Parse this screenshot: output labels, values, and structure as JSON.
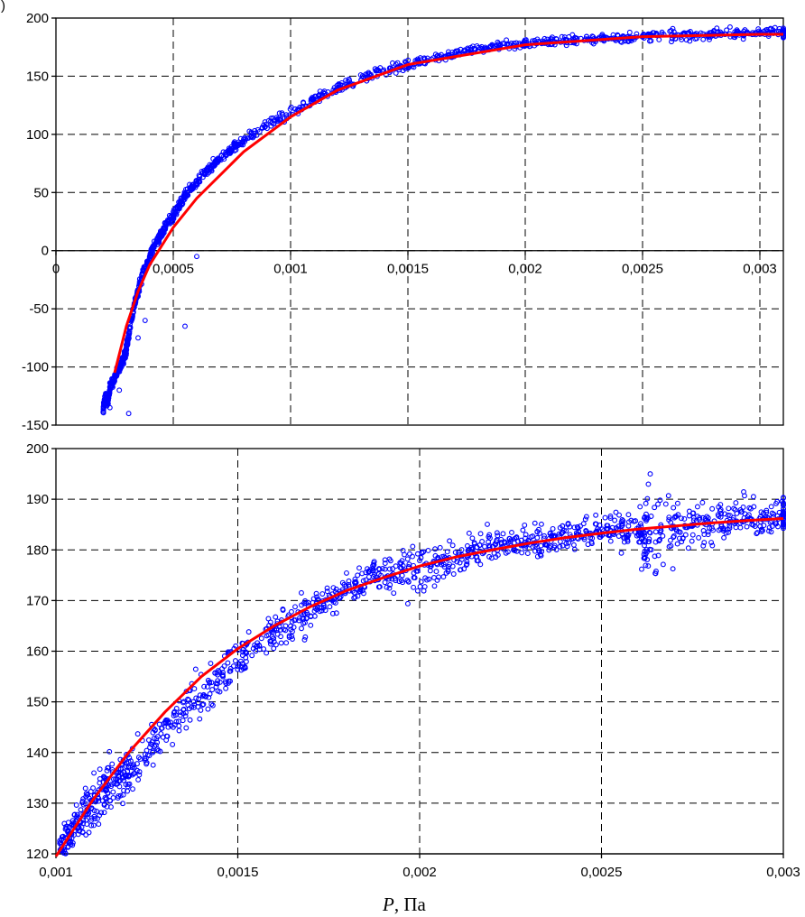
{
  "figure": {
    "label_fragment": ")",
    "xlabel_italic": "P",
    "xlabel_rest": ", Па"
  },
  "chart_data": [
    {
      "type": "scatter",
      "title": "",
      "xlim": [
        0,
        0.0031
      ],
      "ylim": [
        -150,
        200
      ],
      "x_ticks": [
        0,
        0.0005,
        0.001,
        0.0015,
        0.002,
        0.0025,
        0.003
      ],
      "x_tick_labels": [
        "0",
        "0,0005",
        "0,001",
        "0,0015",
        "0,002",
        "0,0025",
        "0,003"
      ],
      "y_ticks": [
        -150,
        -100,
        -50,
        0,
        50,
        100,
        150,
        200
      ],
      "y_tick_labels": [
        "-150",
        "-100",
        "-50",
        "0",
        "50",
        "100",
        "150",
        "200"
      ],
      "grid": true,
      "x_axis_at_y": 0,
      "series": [
        {
          "kind": "scatter",
          "color": "#0000ff",
          "x": [
            0.0002,
            0.00021,
            0.00022,
            0.00023,
            0.00025,
            0.00027,
            0.00029,
            0.0003,
            0.00031,
            0.00033,
            0.00035,
            0.00037,
            0.0004,
            0.00042,
            0.00045,
            0.00047,
            0.0005,
            0.00053,
            0.00056,
            0.0006,
            0.00065,
            0.0007,
            0.00075,
            0.0008,
            0.0009,
            0.001,
            0.0011,
            0.0012,
            0.0013,
            0.0014,
            0.0015,
            0.0016,
            0.0017,
            0.0018,
            0.0019,
            0.002,
            0.0021,
            0.0022,
            0.0023,
            0.0024,
            0.0025,
            0.0026,
            0.0027,
            0.0028,
            0.0029,
            0.003,
            0.0031
          ],
          "y": [
            -140,
            -125,
            -130,
            -118,
            -110,
            -100,
            -92,
            -85,
            -72,
            -50,
            -35,
            -20,
            -5,
            5,
            15,
            22,
            30,
            40,
            50,
            58,
            70,
            80,
            88,
            95,
            108,
            118,
            130,
            140,
            148,
            155,
            160,
            165,
            170,
            173,
            177,
            178,
            180,
            181,
            182,
            183,
            184,
            185,
            185,
            186,
            187,
            187,
            188
          ],
          "outliers_x": [
            0.00023,
            0.00027,
            0.00031,
            0.00035,
            0.00038,
            0.0006,
            0.00055
          ],
          "outliers_y": [
            -135,
            -120,
            -140,
            -75,
            -60,
            -5,
            -65
          ]
        },
        {
          "kind": "line",
          "color": "#ff0000",
          "x": [
            0.00025,
            0.0003,
            0.00035,
            0.0004,
            0.0005,
            0.0006,
            0.0008,
            0.001,
            0.0012,
            0.0015,
            0.002,
            0.0025,
            0.003,
            0.0031
          ],
          "y": [
            -105,
            -65,
            -35,
            -12,
            20,
            45,
            85,
            115,
            138,
            160,
            177,
            184,
            186,
            186
          ]
        }
      ]
    },
    {
      "type": "scatter",
      "title": "",
      "xlim": [
        0.001,
        0.003
      ],
      "ylim": [
        120,
        200
      ],
      "x_ticks": [
        0.001,
        0.0015,
        0.002,
        0.0025,
        0.003
      ],
      "x_tick_labels": [
        "0,001",
        "0,0015",
        "0,002",
        "0,0025",
        "0,003"
      ],
      "y_ticks": [
        120,
        130,
        140,
        150,
        160,
        170,
        180,
        190,
        200
      ],
      "y_tick_labels": [
        "120",
        "130",
        "140",
        "150",
        "160",
        "170",
        "180",
        "190",
        "200"
      ],
      "grid": true,
      "xlabel": "P, Па",
      "series": [
        {
          "kind": "scatter",
          "color": "#0000ff",
          "x": [
            0.00101,
            0.00103,
            0.00105,
            0.00108,
            0.0011,
            0.00113,
            0.00115,
            0.00118,
            0.0012,
            0.00125,
            0.0013,
            0.00135,
            0.0014,
            0.00145,
            0.0015,
            0.00155,
            0.0016,
            0.00165,
            0.0017,
            0.00175,
            0.0018,
            0.00185,
            0.0019,
            0.00195,
            0.002,
            0.00205,
            0.0021,
            0.00215,
            0.0022,
            0.00225,
            0.0023,
            0.00235,
            0.0024,
            0.00245,
            0.0025,
            0.00255,
            0.0026,
            0.00262,
            0.00265,
            0.0027,
            0.00275,
            0.0028,
            0.00285,
            0.0029,
            0.00295,
            0.003
          ],
          "y": [
            121,
            123,
            126,
            128,
            130,
            131,
            133,
            135,
            136,
            140,
            144,
            148,
            152,
            155,
            158,
            161,
            164,
            166,
            168,
            170,
            172,
            174,
            176,
            176,
            176,
            177,
            178,
            180,
            181,
            181,
            182,
            182,
            183,
            183,
            184,
            184,
            184,
            182,
            183,
            184,
            185,
            185,
            186,
            186,
            186,
            187
          ],
          "spread": [
            3,
            3,
            4,
            5,
            6,
            6,
            5,
            4,
            4,
            4,
            4,
            4,
            4,
            4,
            4,
            4,
            4,
            4,
            3,
            3,
            3,
            3,
            4,
            5,
            4,
            3,
            3,
            3,
            3,
            3,
            3,
            3,
            3,
            3,
            3,
            4,
            7,
            10,
            7,
            4,
            4,
            4,
            4,
            3,
            3,
            3
          ]
        },
        {
          "kind": "line",
          "color": "#ff0000",
          "x": [
            0.001,
            0.0011,
            0.0012,
            0.0013,
            0.0014,
            0.0015,
            0.0016,
            0.0017,
            0.0018,
            0.0019,
            0.002,
            0.0021,
            0.0022,
            0.0023,
            0.0024,
            0.0025,
            0.0026,
            0.0027,
            0.0028,
            0.0029,
            0.003
          ],
          "y": [
            119.5,
            130.5,
            140,
            148,
            155,
            160.5,
            165,
            168.8,
            172,
            174.5,
            176.8,
            178.6,
            180,
            181.3,
            182.4,
            183.3,
            184.1,
            184.7,
            185.3,
            185.8,
            186.2
          ]
        }
      ]
    }
  ]
}
